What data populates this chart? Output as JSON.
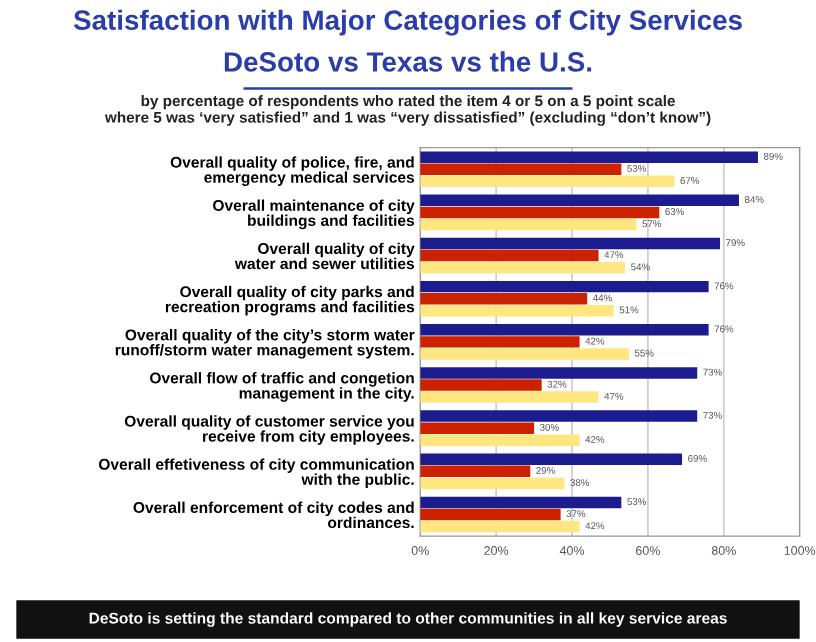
{
  "chart_data": {
    "type": "bar",
    "orientation": "horizontal",
    "title": "Satisfaction with Major Categories of City Services\nDeSoto vs Texas vs the U.S.",
    "subtitle": "by percentage of respondents who rated the item 4 or 5 on a 5 point scale\nwhere 5 was ‘very satisfied” and 1 was “very dissatisfied” (excluding “don’t know”)",
    "categories": [
      "Overall quality of police, fire, and\nemergency medical services",
      "Overall maintenance of city\nbuildings and facilities",
      "Overall quality of city\nwater and sewer utilities",
      "Overall quality of city parks and\nrecreation programs and facilities",
      "Overall quality of the city’s storm water\nrunoff/storm water management system.",
      "Overall flow of traffic and congetion\nmanagement in the city.",
      "Overall quality of customer service you\nreceive from city employees.",
      "Overall effetiveness of city communication\nwith the public.",
      "Overall enforcement of city codes and\nordinances."
    ],
    "series": [
      {
        "color": "#1c1c8f",
        "values": [
          89,
          84,
          79,
          76,
          76,
          73,
          73,
          69,
          53
        ],
        "value_labels": [
          "89%",
          "84%",
          "79%",
          "76%",
          "76%",
          "73%",
          "73%",
          "69%",
          "53%"
        ]
      },
      {
        "color": "#cc2200",
        "values": [
          53,
          63,
          47,
          44,
          42,
          32,
          30,
          29,
          37
        ],
        "value_labels": [
          "53%",
          "63%",
          "47%",
          "44%",
          "42%",
          "32%",
          "30%",
          "29%",
          "37%"
        ]
      },
      {
        "color": "#ffe680",
        "values": [
          67,
          57,
          54,
          51,
          55,
          47,
          42,
          38,
          42
        ],
        "value_labels": [
          "67%",
          "57%",
          "54%",
          "51%",
          "55%",
          "47%",
          "42%",
          "38%",
          "42%"
        ]
      }
    ],
    "xlim": [
      0,
      100
    ],
    "xticks": [
      {
        "value": 0,
        "label": "0%"
      },
      {
        "value": 20,
        "label": "20%"
      },
      {
        "value": 40,
        "label": "40%"
      },
      {
        "value": 60,
        "label": "60%"
      },
      {
        "value": 80,
        "label": "80%"
      },
      {
        "value": 100,
        "label": "100%"
      }
    ],
    "grid": "x",
    "annotations": [
      "DeSoto is setting the standard compared to other communities in all key service areas"
    ]
  }
}
